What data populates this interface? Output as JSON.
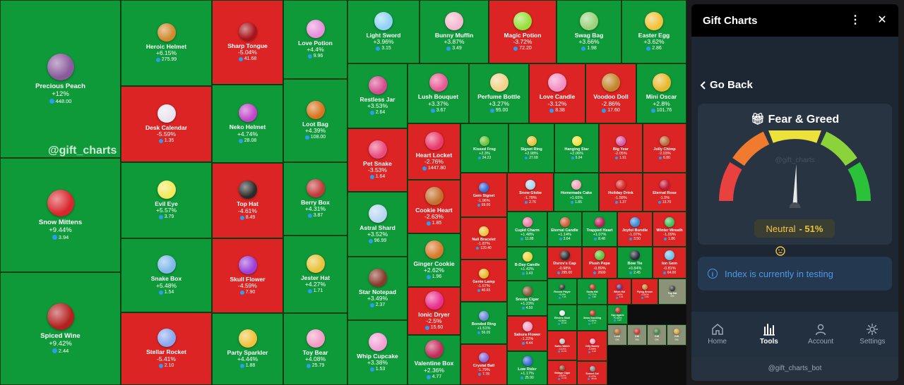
{
  "watermark": "@gift_charts",
  "tiles": [
    {
      "name": "Precious Peach",
      "change": "+12%",
      "price": "448.00",
      "dir": "up",
      "color": "#8a5a9c"
    },
    {
      "name": "Snow Mittens",
      "change": "+9.44%",
      "price": "3.94",
      "dir": "up",
      "color": "#d8262c"
    },
    {
      "name": "Spiced Wine",
      "change": "+9.42%",
      "price": "2.44",
      "dir": "up",
      "color": "#b32020"
    },
    {
      "name": "Heroic Helmet",
      "change": "+6.15%",
      "price": "275.99",
      "dir": "up",
      "color": "#d08a2c"
    },
    {
      "name": "Desk Calendar",
      "change": "-5.59%",
      "price": "1.35",
      "dir": "down",
      "color": "#e9e3f0"
    },
    {
      "name": "Evil Eye",
      "change": "+5.57%",
      "price": "3.79",
      "dir": "up",
      "color": "#f2e95a"
    },
    {
      "name": "Snake Box",
      "change": "+5.48%",
      "price": "1.54",
      "dir": "up",
      "color": "#7fb8e8"
    },
    {
      "name": "Stellar Rocket",
      "change": "-5.41%",
      "price": "2.10",
      "dir": "down",
      "color": "#8aa8f0"
    },
    {
      "name": "Sharp Tongue",
      "change": "-5.04%",
      "price": "41.68",
      "dir": "down",
      "color": "#a8141c"
    },
    {
      "name": "Neko Helmet",
      "change": "+4.74%",
      "price": "28.08",
      "dir": "up",
      "color": "#c246c9"
    },
    {
      "name": "Top Hat",
      "change": "-4.61%",
      "price": "8.49",
      "dir": "down",
      "color": "#2b2b2b"
    },
    {
      "name": "Skull Flower",
      "change": "-4.59%",
      "price": "7.90",
      "dir": "down",
      "color": "#9a3fd9"
    },
    {
      "name": "Party Sparkler",
      "change": "+4.44%",
      "price": "1.88",
      "dir": "up",
      "color": "#f0c23c"
    },
    {
      "name": "Love Potion",
      "change": "+4.4%",
      "price": "9.96",
      "dir": "up",
      "color": "#e88fdc"
    },
    {
      "name": "Loot Bag",
      "change": "+4.39%",
      "price": "108.00",
      "dir": "up",
      "color": "#d8741c"
    },
    {
      "name": "Berry Box",
      "change": "+4.31%",
      "price": "3.87",
      "dir": "up",
      "color": "#c23a3a"
    },
    {
      "name": "Jester Hat",
      "change": "+4.27%",
      "price": "1.71",
      "dir": "up",
      "color": "#e8c23a"
    },
    {
      "name": "Toy Bear",
      "change": "+4.08%",
      "price": "25.79",
      "dir": "up",
      "color": "#f29cc5"
    },
    {
      "name": "Light Sword",
      "change": "+3.96%",
      "price": "3.15",
      "dir": "up",
      "color": "#8fd2f5"
    },
    {
      "name": "Restless Jar",
      "change": "+3.53%",
      "price": "2.64",
      "dir": "up",
      "color": "#d64a8f"
    },
    {
      "name": "Pet Snake",
      "change": "-3.53%",
      "price": "1.64",
      "dir": "down",
      "color": "#e84c7d"
    },
    {
      "name": "Astral Shard",
      "change": "+3.52%",
      "price": "96.99",
      "dir": "up",
      "color": "#b8d6f0"
    },
    {
      "name": "Star Notepad",
      "change": "+3.49%",
      "price": "2.37",
      "dir": "up",
      "color": "#8a3a2a"
    },
    {
      "name": "Whip Cupcake",
      "change": "+3.38%",
      "price": "1.53",
      "dir": "up",
      "color": "#f2a0d6"
    },
    {
      "name": "Bunny Muffin",
      "change": "+3.87%",
      "price": "3.49",
      "dir": "up",
      "color": "#f5b8d0"
    },
    {
      "name": "Magic Potion",
      "change": "-3.72%",
      "price": "72.20",
      "dir": "down",
      "color": "#96e03a"
    },
    {
      "name": "Swag Bag",
      "change": "+3.66%",
      "price": "1.98",
      "dir": "up",
      "color": "#9ad27a"
    },
    {
      "name": "Easter Egg",
      "change": "+3.62%",
      "price": "2.86",
      "dir": "up",
      "color": "#f2c23c"
    },
    {
      "name": "Lush Bouquet",
      "change": "+3.37%",
      "price": "3.67",
      "dir": "up",
      "color": "#e85a96"
    },
    {
      "name": "Perfume Bottle",
      "change": "+3.27%",
      "price": "95.00",
      "dir": "up",
      "color": "#f2d28a"
    },
    {
      "name": "Love Candle",
      "change": "-3.12%",
      "price": "8.38",
      "dir": "down",
      "color": "#f28fc2"
    },
    {
      "name": "Voodoo Doll",
      "change": "-2.86%",
      "price": "17.60",
      "dir": "down",
      "color": "#c2852c"
    },
    {
      "name": "Mini Oscar",
      "change": "+2.8%",
      "price": "101.76",
      "dir": "up",
      "color": "#e8b82c"
    },
    {
      "name": "Heart Locket",
      "change": "-2.76%",
      "price": "1447.80",
      "dir": "down",
      "color": "#e83a6c"
    },
    {
      "name": "Cookie Heart",
      "change": "-2.63%",
      "price": "1.85",
      "dir": "down",
      "color": "#c2702c"
    },
    {
      "name": "Ginger Cookie",
      "change": "+2.62%",
      "price": "1.96",
      "dir": "up",
      "color": "#d87a2c"
    },
    {
      "name": "Ionic Dryer",
      "change": "-2.5%",
      "price": "15.60",
      "dir": "down",
      "color": "#e8308f"
    },
    {
      "name": "Valentine Box",
      "change": "+2.36%",
      "price": "4.77",
      "dir": "up",
      "color": "#c22c5a"
    },
    {
      "name": "Kissed Frog",
      "change": "+2.3%",
      "price": "34.23",
      "dir": "up",
      "color": "#6cc23a"
    },
    {
      "name": "Signet Ring",
      "change": "+2.98%",
      "price": "27.68",
      "dir": "up",
      "color": "#e8c23a"
    },
    {
      "name": "Hanging Star",
      "change": "+2.06%",
      "price": "5.94",
      "dir": "up",
      "color": "#f2e23a"
    },
    {
      "name": "Big Year",
      "change": "-2.05%",
      "price": "1.91",
      "dir": "down",
      "color": "#d65aa8"
    },
    {
      "name": "Jolly Chimp",
      "change": "-2.03%",
      "price": "6.80",
      "dir": "down",
      "color": "#b86a3a"
    },
    {
      "name": "Gem Signet",
      "change": "-1.96%",
      "price": "69.00",
      "dir": "down",
      "color": "#3a6ad6"
    },
    {
      "name": "Snow Globe",
      "change": "-1.78%",
      "price": "2.76",
      "dir": "down",
      "color": "#a8d6f0"
    },
    {
      "name": "Homemade Cake",
      "change": "+1.65%",
      "price": "1.85",
      "dir": "up",
      "color": "#f2a0b8"
    },
    {
      "name": "Holiday Drink",
      "change": "-1.58%",
      "price": "1.37",
      "dir": "down",
      "color": "#d6302c"
    },
    {
      "name": "Eternal Rose",
      "change": "-1.5%",
      "price": "13.70",
      "dir": "down",
      "color": "#c21c3a"
    },
    {
      "name": "Nail Bracelet",
      "change": "-1.87%",
      "price": "120.40",
      "dir": "down",
      "color": "#f2c23c"
    },
    {
      "name": "Genie Lamp",
      "change": "-1.67%",
      "price": "40.65",
      "dir": "down",
      "color": "#e8b82c"
    },
    {
      "name": "Bonded Ring",
      "change": "+1.51%",
      "price": "56.05",
      "dir": "up",
      "color": "#6a8ad6"
    },
    {
      "name": "Crystal Ball",
      "change": "-1.79%",
      "price": "7.78",
      "dir": "down",
      "color": "#8a6ad6"
    },
    {
      "name": "Cupid Charm",
      "change": "+1.48%",
      "price": "11.88",
      "dir": "up",
      "color": "#f27aa8"
    },
    {
      "name": "Eternal Candle",
      "change": "+1.14%",
      "price": "3.64",
      "dir": "up",
      "color": "#d65a3a"
    },
    {
      "name": "Trapped Heart",
      "change": "+1.07%",
      "price": "8.48",
      "dir": "up",
      "color": "#c21c5a"
    },
    {
      "name": "Joyful Bundle",
      "change": "-1.07%",
      "price": "3.50",
      "dir": "down",
      "color": "#3a8ad6"
    },
    {
      "name": "Winter Wreath",
      "change": "-1.09%",
      "price": "1.86",
      "dir": "down",
      "color": "#3ac25a"
    },
    {
      "name": "B-Day Candle",
      "change": "+1.42%",
      "price": "1.43",
      "dir": "up",
      "color": "#f2d23a"
    },
    {
      "name": "Durov's Cap",
      "change": "-0.98%",
      "price": "295.00",
      "dir": "down",
      "color": "#2c2c2c"
    },
    {
      "name": "Plush Pepe",
      "change": "-0.89%",
      "price": "2600",
      "dir": "down",
      "color": "#5ac23a"
    },
    {
      "name": "Bow Tie",
      "change": "+0.84%",
      "price": "2.45",
      "dir": "up",
      "color": "#2c2c3a"
    },
    {
      "name": "Ion Gem",
      "change": "-0.81%",
      "price": "64.00",
      "dir": "down",
      "color": "#6ac2e8"
    },
    {
      "name": "Snoop Cigar",
      "change": "+1.23%",
      "price": "4.50",
      "dir": "up",
      "color": "#8a5a3a"
    },
    {
      "name": "Record Player",
      "change": "+0.9%",
      "price": "7.45",
      "dir": "up",
      "color": "#3a3a3a"
    },
    {
      "name": "Santa Hat",
      "change": "+0.73%",
      "price": "1.88",
      "dir": "up",
      "color": "#d6302c"
    },
    {
      "name": "Sakura Flower",
      "change": "-1.22%",
      "price": "4.44",
      "dir": "down",
      "color": "#f2a0c2"
    },
    {
      "name": "Xmas Stocking",
      "change": "+0.59%",
      "price": "1.71",
      "dir": "up",
      "color": "#d6302c"
    },
    {
      "name": "Electric Skull",
      "change": "+0.86%",
      "price": "15.00",
      "dir": "up",
      "color": "#e8e8e8"
    },
    {
      "name": "Low Rider",
      "change": "+1.17%",
      "price": "25.90",
      "dir": "up",
      "color": "#3a6ad6"
    },
    {
      "name": "Jelly Bunny",
      "change": "-0.59%",
      "price": "3.48",
      "dir": "down",
      "color": "#f2a0c2"
    },
    {
      "name": "Swiss Watch",
      "change": "-0.44%",
      "price": "21.80",
      "dir": "down",
      "color": "#c2c2c2"
    },
    {
      "name": "Spy Agaric",
      "change": "+0.48%",
      "price": "1.97",
      "dir": "up",
      "color": "#d6302c"
    },
    {
      "name": "Scared Cat",
      "change": "-0.42%",
      "price": "35.00",
      "dir": "down",
      "color": "#8a8a8a"
    },
    {
      "name": "Vintage Cigar",
      "change": "-0.62%",
      "price": "12.80",
      "dir": "down",
      "color": "#8a5a3a"
    },
    {
      "name": "Witch Hat",
      "change": "-0.6%",
      "price": "2.64",
      "dir": "down",
      "color": "#5a3a8a"
    },
    {
      "name": "Flying Broom",
      "change": "-0.51%",
      "price": "4.86",
      "dir": "down",
      "color": "#c28a3a"
    },
    {
      "name": "Top Hat",
      "change": "0%",
      "price": "",
      "dir": "flat",
      "color": "#3a3a3a"
    },
    {
      "name": "Loot",
      "change": "0%",
      "price": "",
      "dir": "flat",
      "color": "#c2702c"
    },
    {
      "name": "Gift",
      "change": "0%",
      "price": "",
      "dir": "flat",
      "color": "#d6302c"
    },
    {
      "name": "Gift",
      "change": "0%",
      "price": "",
      "dir": "flat",
      "color": "#3a8a3a"
    },
    {
      "name": "Gift",
      "change": "0%",
      "price": "",
      "dir": "flat",
      "color": "#d6a83a"
    }
  ],
  "panel": {
    "title": "Gift Charts",
    "menu_icon": "⋮",
    "close_icon": "✕",
    "back_label": "Go Back",
    "fear_greed_title": "Fear & Greed",
    "gauge_watermark": "@gift_charts",
    "sentiment_label": "Neutral",
    "sentiment_value": "- 51%",
    "sentiment_value_num": 51,
    "info_text": "Index is currently in testing",
    "nav": [
      {
        "label": "Home",
        "icon": "home-icon",
        "active": false
      },
      {
        "label": "Tools",
        "icon": "chart-icon",
        "active": true
      },
      {
        "label": "Account",
        "icon": "user-icon",
        "active": false
      },
      {
        "label": "Settings",
        "icon": "gear-icon",
        "active": false
      }
    ],
    "footer": "@gift_charts_bot"
  }
}
